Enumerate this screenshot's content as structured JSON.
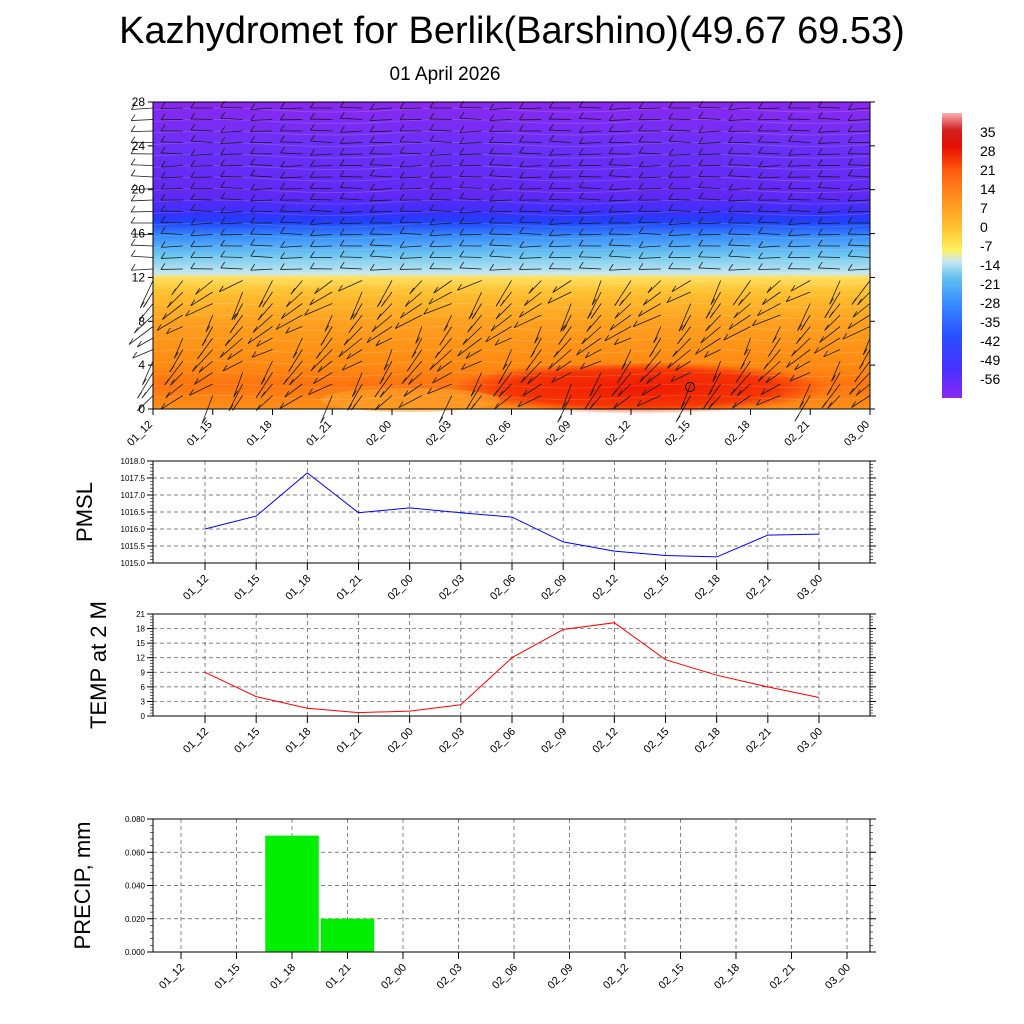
{
  "title": "Kazhydromet for Berlik(Barshino)(49.67 69.53)",
  "subtitle": "01 April 2026",
  "time_labels": [
    "01_12",
    "01_15",
    "01_18",
    "01_21",
    "02_00",
    "02_03",
    "02_06",
    "02_09",
    "02_12",
    "02_15",
    "02_18",
    "02_21",
    "03_00"
  ],
  "chart_data": [
    {
      "type": "heatmap",
      "name": "temperature-cross-section",
      "title": "",
      "ylabel": "",
      "ylim": [
        0,
        28
      ],
      "y_ticks": [
        "0",
        "4",
        "8",
        "12",
        "16",
        "20",
        "24",
        "28"
      ],
      "colorbar_labels": [
        "35",
        "28",
        "21",
        "14",
        "7",
        "0",
        "-7",
        "-14",
        "-21",
        "-28",
        "-35",
        "-42",
        "-49",
        "-56"
      ],
      "colorbar_range": [
        -63,
        42
      ],
      "palette": {
        "warm_orange": "#ffa020",
        "red": "#f02000",
        "yellow": "#ffe050",
        "light_blue": "#a8dcf0",
        "blue": "#3a80ff",
        "purple": "#8a28f0"
      },
      "levels_note": "wind barbs overlay"
    },
    {
      "type": "line",
      "name": "pmsl",
      "ylabel": "PMSL",
      "ylim": [
        1015.0,
        1018.0
      ],
      "y_ticks": [
        "1015.0",
        "1015.5",
        "1016.0",
        "1016.5",
        "1017.0",
        "1017.5",
        "1018.0"
      ],
      "series": [
        {
          "name": "PMSL",
          "color": "#0000ff",
          "values": [
            1016.0,
            1016.38,
            1017.65,
            1016.48,
            1016.62,
            1016.48,
            1016.35,
            1015.62,
            1015.35,
            1015.22,
            1015.18,
            1015.82,
            1015.85
          ]
        }
      ]
    },
    {
      "type": "line",
      "name": "temp-2m",
      "ylabel": "TEMP at 2 M",
      "ylim": [
        0,
        21
      ],
      "y_ticks": [
        "0",
        "3",
        "6",
        "9",
        "12",
        "15",
        "18",
        "21"
      ],
      "series": [
        {
          "name": "TEMP at 2 M",
          "color": "#ff0000",
          "values": [
            9.0,
            4.0,
            1.6,
            0.7,
            1.0,
            2.3,
            12.0,
            17.8,
            19.2,
            11.6,
            8.4,
            6.0,
            3.8
          ]
        }
      ]
    },
    {
      "type": "bar",
      "name": "precip",
      "ylabel": "PRECIP, mm",
      "ylim": [
        0,
        0.08
      ],
      "y_ticks": [
        "0.000",
        "0.020",
        "0.040",
        "0.060",
        "0.080"
      ],
      "series": [
        {
          "name": "PRECIP",
          "color": "#00ee00",
          "values": [
            0,
            0,
            0.07,
            0.02,
            0,
            0,
            0,
            0,
            0,
            0,
            0,
            0,
            0
          ]
        }
      ]
    }
  ]
}
